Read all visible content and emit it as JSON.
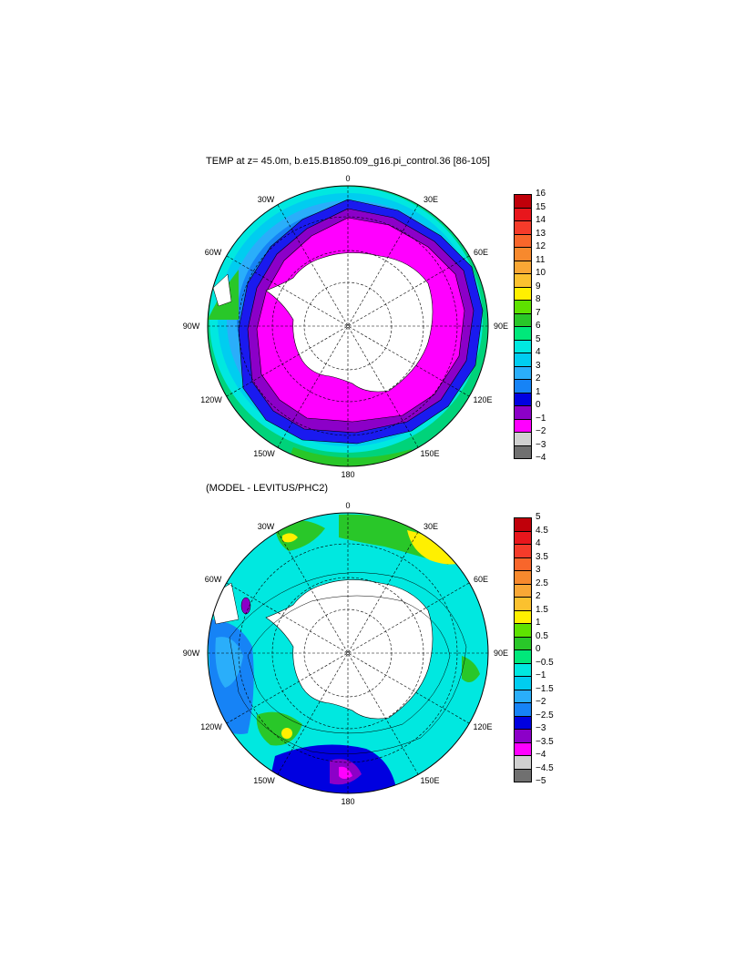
{
  "panels": [
    {
      "title": "TEMP at z=  45.0m, b.e15.B1850.f09_g16.pi_control.36 [86-105]",
      "lon_labels": {
        "top": "0",
        "bottom": "180",
        "left": "90W",
        "right": "90E",
        "ul1": "30W",
        "ul2": "60W",
        "ll1": "120W",
        "ll2": "150W",
        "ur1": "30E",
        "ur2": "60E",
        "lr1": "120E",
        "lr2": "150E"
      },
      "colorbar": {
        "ticks": [
          "16",
          "15",
          "14",
          "13",
          "12",
          "11",
          "10",
          "9",
          "8",
          "7",
          "6",
          "5",
          "4",
          "3",
          "2",
          "1",
          "0",
          "−1",
          "−2",
          "−3",
          "−4"
        ],
        "colors": [
          "#c0000a",
          "#e8161c",
          "#f53b2a",
          "#f8662b",
          "#f7892d",
          "#f9a735",
          "#fbc12f",
          "#fff000",
          "#5ee200",
          "#29c729",
          "#00e87a",
          "#00e8e0",
          "#00cdf0",
          "#2aaefa",
          "#1683f6",
          "#0000e0",
          "#8c00c8",
          "#ff00ff",
          "#d0d0d0",
          "#707070"
        ]
      }
    },
    {
      "title": "(MODEL - LEVITUS/PHC2)",
      "lon_labels": {
        "top": "0",
        "bottom": "180",
        "left": "90W",
        "right": "90E",
        "ul1": "30W",
        "ul2": "60W",
        "ll1": "120W",
        "ll2": "150W",
        "ur1": "30E",
        "ur2": "60E",
        "lr1": "120E",
        "lr2": "150E"
      },
      "colorbar": {
        "ticks": [
          "5",
          "4.5",
          "4",
          "3.5",
          "3",
          "2.5",
          "2",
          "1.5",
          "1",
          "0.5",
          "0",
          "−0.5",
          "−1",
          "−1.5",
          "−2",
          "−2.5",
          "−3",
          "−3.5",
          "−4",
          "−4.5",
          "−5"
        ],
        "colors": [
          "#c0000a",
          "#e8161c",
          "#f53b2a",
          "#f8662b",
          "#f7892d",
          "#f9a735",
          "#fbc12f",
          "#fff000",
          "#5ee200",
          "#29c729",
          "#00e87a",
          "#00e8e0",
          "#00cdf0",
          "#2aaefa",
          "#1683f6",
          "#0000e0",
          "#8c00c8",
          "#ff00ff",
          "#d0d0d0",
          "#707070"
        ]
      }
    }
  ]
}
